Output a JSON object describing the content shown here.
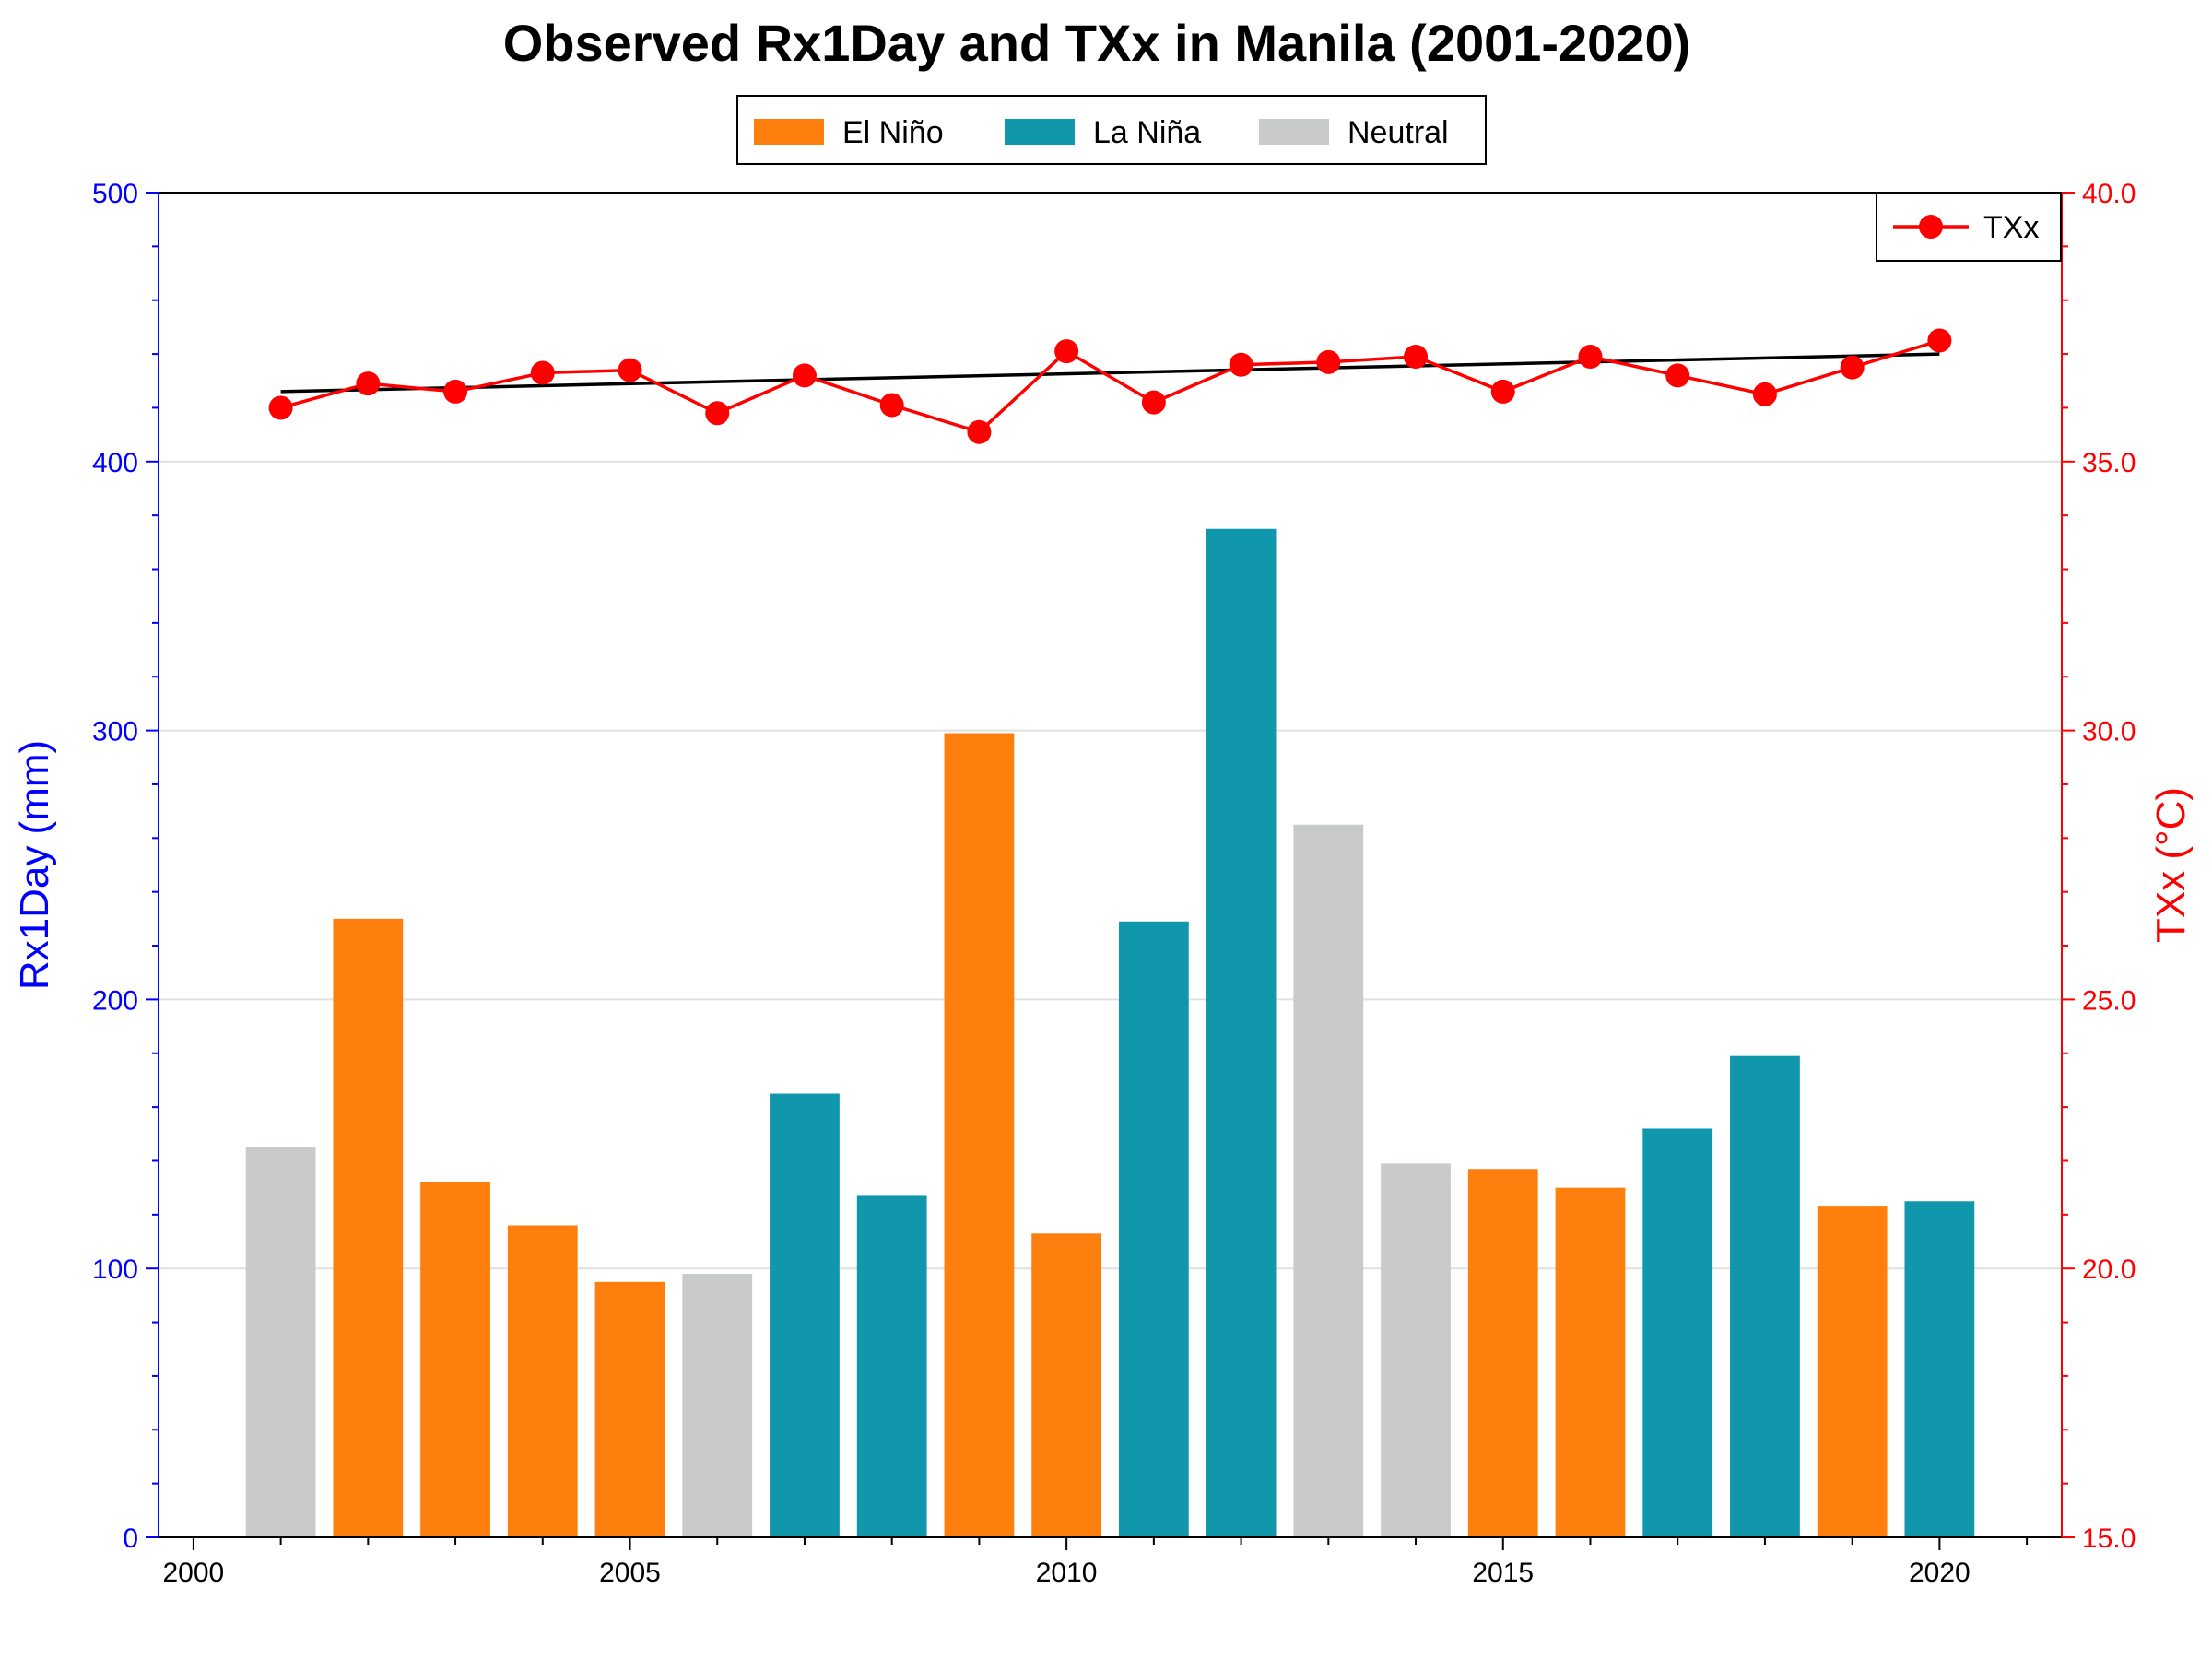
{
  "chart_data": {
    "type": "bar",
    "title": "Observed Rx1Day and TXx in Manila (2001-2020)",
    "x": [
      2001,
      2002,
      2003,
      2004,
      2005,
      2006,
      2007,
      2008,
      2009,
      2010,
      2011,
      2012,
      2013,
      2014,
      2015,
      2016,
      2017,
      2018,
      2019,
      2020
    ],
    "xlim": [
      1999.6,
      2021.4
    ],
    "x_ticks": [
      "2000",
      "2005",
      "2010",
      "2015",
      "2020"
    ],
    "bars": {
      "axis": "left",
      "values": [
        145,
        230,
        132,
        116,
        95,
        98,
        165,
        127,
        299,
        113,
        229,
        375,
        265,
        139,
        137,
        130,
        152,
        179,
        123,
        125
      ],
      "phase": [
        "Neutral",
        "El Niño",
        "El Niño",
        "El Niño",
        "El Niño",
        "Neutral",
        "La Niña",
        "La Niña",
        "El Niño",
        "El Niño",
        "La Niña",
        "La Niña",
        "Neutral",
        "Neutral",
        "El Niño",
        "El Niño",
        "La Niña",
        "La Niña",
        "El Niño",
        "La Niña"
      ]
    },
    "line": {
      "name": "TXx",
      "axis": "right",
      "values": [
        36.0,
        36.45,
        36.3,
        36.65,
        36.7,
        35.9,
        36.6,
        36.05,
        35.55,
        37.05,
        36.1,
        36.8,
        36.85,
        36.95,
        36.3,
        36.95,
        36.6,
        36.25,
        36.75,
        37.25
      ],
      "color": "#ff0000"
    },
    "trend": {
      "x": [
        2001,
        2020
      ],
      "values": [
        36.3,
        37.0
      ],
      "color": "#000000"
    },
    "left_axis": {
      "label": "Rx1Day (mm)",
      "ylim": [
        0,
        500
      ],
      "ticks": [
        "0",
        "100",
        "200",
        "300",
        "400",
        "500"
      ],
      "color": "#0000ff"
    },
    "right_axis": {
      "label": "TXx (°C)",
      "ylim": [
        15,
        40
      ],
      "ticks": [
        "15.0",
        "20.0",
        "25.0",
        "30.0",
        "35.0",
        "40.0"
      ],
      "color": "#ff0000"
    },
    "legend_enso": {
      "placement": "top-center",
      "entries": [
        {
          "label": "El Niño",
          "color": "#ff7f0e"
        },
        {
          "label": "La Niña",
          "color": "#1197ab"
        },
        {
          "label": "Neutral",
          "color": "#c8cbca"
        }
      ]
    },
    "legend_line": {
      "placement": "top-right",
      "label": "TXx"
    },
    "grid": true
  }
}
